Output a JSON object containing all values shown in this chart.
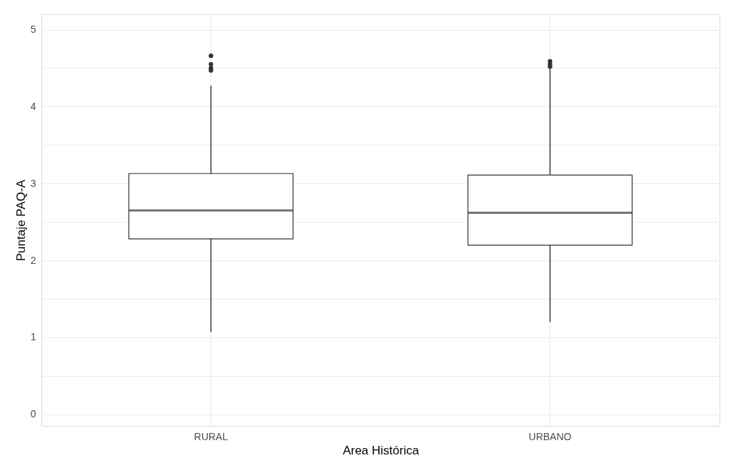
{
  "chart_data": {
    "type": "box",
    "xlabel": "Area Histórica",
    "ylabel": "Puntaje PAQ-A",
    "categories": [
      "RURAL",
      "URBANO"
    ],
    "boxes": [
      {
        "low": 1.07,
        "q1": 2.28,
        "median": 2.65,
        "q3": 3.13,
        "high": 4.27,
        "outliers": [
          4.47,
          4.5,
          4.55,
          4.66
        ]
      },
      {
        "low": 1.2,
        "q1": 2.2,
        "median": 2.62,
        "q3": 3.11,
        "high": 4.5,
        "outliers": [
          4.52,
          4.55,
          4.59
        ]
      }
    ],
    "ylim": [
      -0.15,
      5.2
    ],
    "yticks": [
      0,
      {
        "value": 0.5,
        "label": null
      },
      1,
      {
        "value": 1.5,
        "label": null
      },
      2,
      {
        "value": 2.5,
        "label": null
      },
      3,
      {
        "value": 3.5,
        "label": null
      },
      4,
      {
        "value": 4.5,
        "label": null
      },
      5
    ],
    "grid": true
  }
}
